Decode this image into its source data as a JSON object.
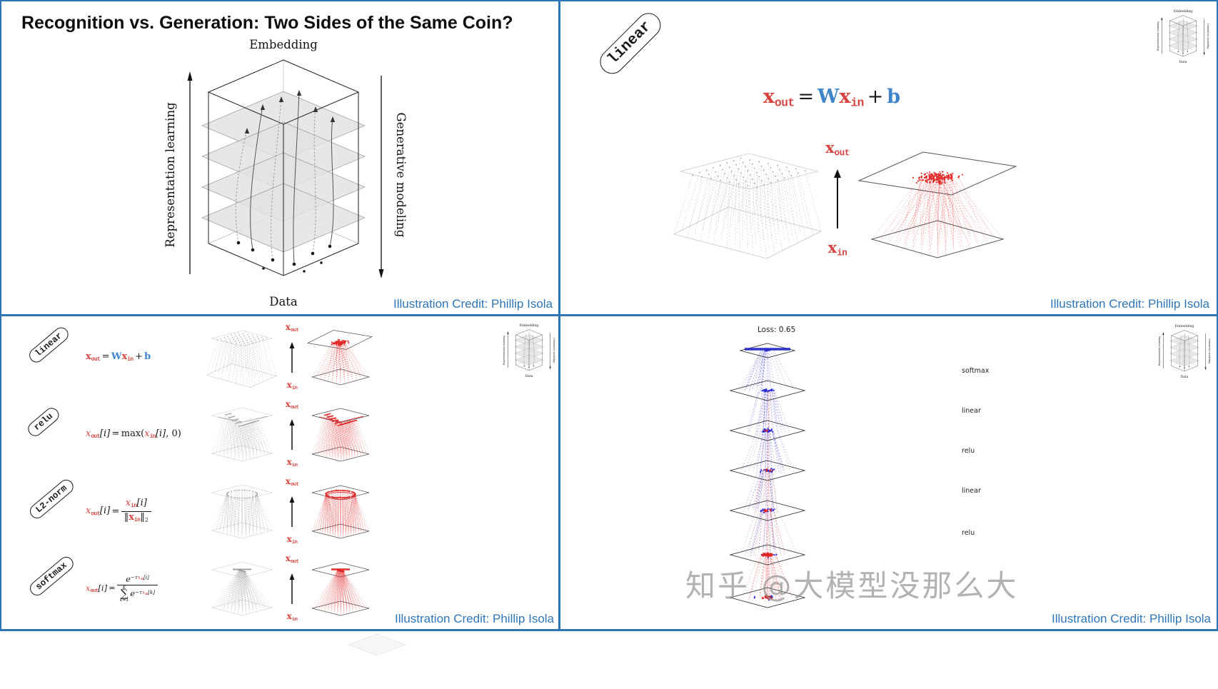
{
  "colors": {
    "frame_blue": "#2e75b6",
    "credit_blue": "#2e75b6",
    "formula_red": "#d64541",
    "formula_blue": "#3e85c9",
    "net_blue": "#2727cf",
    "net_red": "#e02525"
  },
  "shared": {
    "credit": "Illustration Credit: Phillip Isola",
    "axis": {
      "top": "Embedding",
      "bottom": "Data",
      "left": "Representation learning",
      "right": "Generative modeling"
    },
    "xout": {
      "x": "x",
      "sub": "out"
    },
    "xin": {
      "x": "x",
      "sub": "in"
    }
  },
  "slide_tl": {
    "title": "Recognition vs. Generation: Two Sides of the Same Coin?"
  },
  "slide_tr": {
    "badge": "linear"
  },
  "slide_bl": {
    "rows": [
      {
        "badge": "linear"
      },
      {
        "badge": "relu"
      },
      {
        "badge": "L2-norm"
      },
      {
        "badge": "softmax"
      }
    ]
  },
  "slide_br": {
    "loss": "Loss: 0.65",
    "layers": [
      "softmax",
      "linear",
      "relu",
      "linear",
      "relu"
    ],
    "watermark": "知乎 @大模型没那么大"
  },
  "formulas": {
    "linear": {
      "x": "x",
      "out": "out",
      "eq": "=",
      "W": "W",
      "x2": "x",
      "in": "in",
      "plus": "+",
      "b": "b"
    },
    "relu": {
      "x": "x",
      "out": "out",
      "bi": "[i]",
      "eq": "=",
      "fn": "max(",
      "x2": "x",
      "in": "in",
      "bi2": "[i]",
      "tail": ", 0)"
    },
    "l2norm": {
      "x": "x",
      "out": "out",
      "bi": "[i]",
      "eq": "=",
      "num_x": "x",
      "num_in": "in",
      "num_bi": "[i]",
      "bar_l": "‖",
      "den_x": "x",
      "den_in": "in",
      "bar_r": "‖",
      "two": "2"
    },
    "softmax": {
      "x": "x",
      "out": "out",
      "bi": "[i]",
      "eq": "=",
      "num_e": "e",
      "num_exp": "−τ",
      "num_x": "x",
      "num_in": "in",
      "num_bi": "[i]",
      "sum": "∑",
      "sum_top": "K",
      "sum_bot": "k=1",
      "den_e": "e",
      "den_exp": "−τ",
      "den_x": "x",
      "den_in": "in",
      "den_bk": "[k]"
    }
  }
}
